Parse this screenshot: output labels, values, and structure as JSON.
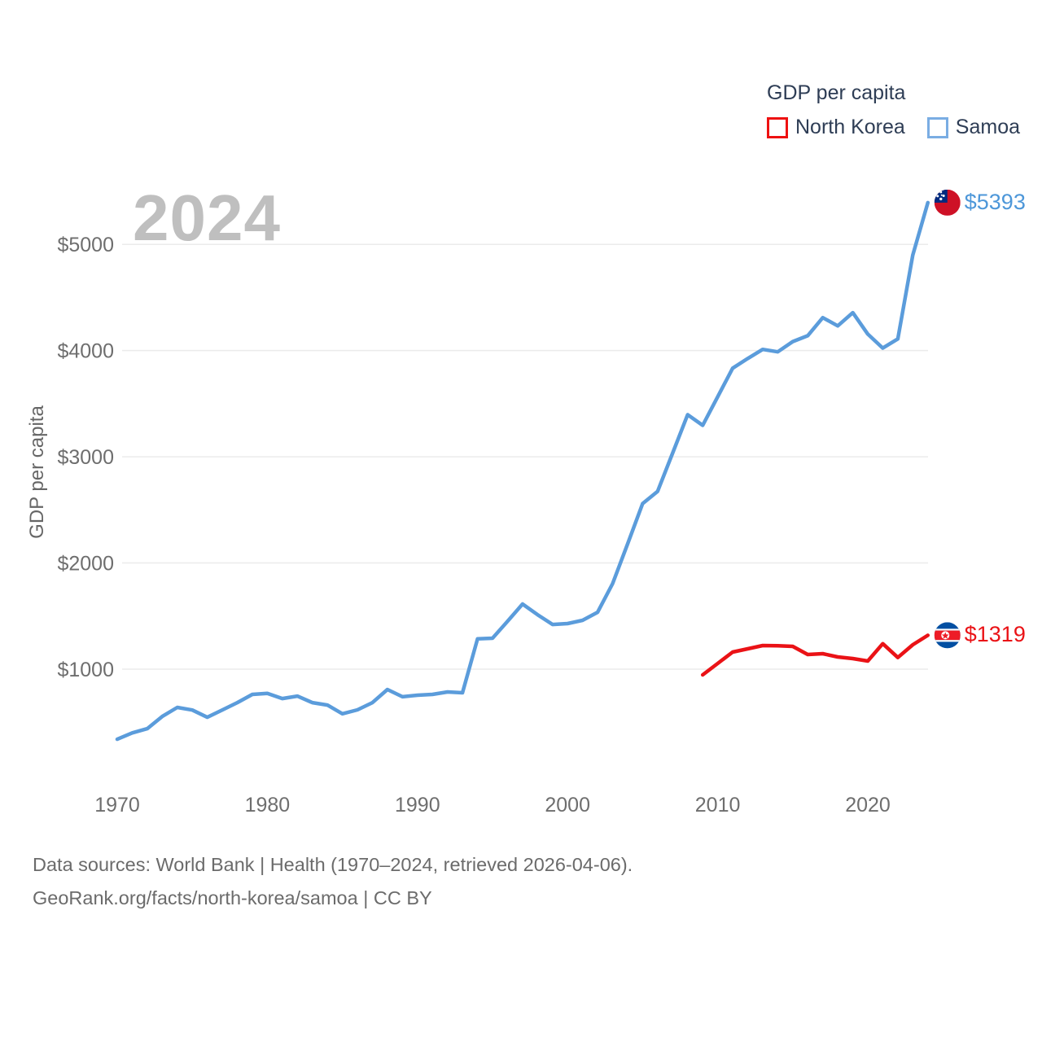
{
  "legend": {
    "title": "GDP per capita",
    "items": [
      {
        "label": "North Korea",
        "swatch_color": "#ee1111"
      },
      {
        "label": "Samoa",
        "swatch_color": "#7aade3"
      }
    ]
  },
  "watermark_year": "2024",
  "y_axis_title": "GDP per capita",
  "footer": {
    "line1": "Data sources: World Bank | Health (1970–2024, retrieved 2026-04-06).",
    "line2": "GeoRank.org/facts/north-korea/samoa | CC BY"
  },
  "chart_data": {
    "type": "line",
    "title": "GDP per capita",
    "ylabel": "GDP per capita",
    "x_range": [
      1970,
      2024
    ],
    "ylim": [
      200,
      5600
    ],
    "grid": "horizontal",
    "legend_position": "top-right",
    "y_ticks": [
      {
        "value": 1000,
        "label": "$1000"
      },
      {
        "value": 2000,
        "label": "$2000"
      },
      {
        "value": 3000,
        "label": "$3000"
      },
      {
        "value": 4000,
        "label": "$4000"
      },
      {
        "value": 5000,
        "label": "$5000"
      }
    ],
    "x_ticks": [
      {
        "value": 1970,
        "label": "1970"
      },
      {
        "value": 1980,
        "label": "1980"
      },
      {
        "value": 1990,
        "label": "1990"
      },
      {
        "value": 2000,
        "label": "2000"
      },
      {
        "value": 2010,
        "label": "2010"
      },
      {
        "value": 2020,
        "label": "2020"
      }
    ],
    "series": [
      {
        "name": "North Korea",
        "color": "#ea1216",
        "start_year": 2009,
        "end_year": 2024,
        "end_label": "$1319",
        "end_label_color": "#ea1216",
        "values": [
          946,
          1054,
          1161,
          1192,
          1222,
          1220,
          1215,
          1138,
          1146,
          1115,
          1100,
          1077,
          1240,
          1110,
          1230,
          1319
        ]
      },
      {
        "name": "Samoa",
        "color": "#5b9cdb",
        "start_year": 1970,
        "end_year": 2024,
        "end_label": "$5393",
        "end_label_color": "#4d97d9",
        "values": [
          340,
          400,
          440,
          555,
          640,
          615,
          547,
          616,
          685,
          762,
          772,
          723,
          746,
          685,
          662,
          580,
          617,
          685,
          808,
          740,
          755,
          762,
          785,
          778,
          1285,
          1291,
          1450,
          1613,
          1513,
          1421,
          1429,
          1460,
          1536,
          1805,
          2180,
          2559,
          2674,
          3035,
          3396,
          3296,
          3565,
          3834,
          3925,
          4011,
          3988,
          4085,
          4140,
          4310,
          4233,
          4357,
          4155,
          4023,
          4110,
          4900,
          5393
        ]
      }
    ]
  }
}
